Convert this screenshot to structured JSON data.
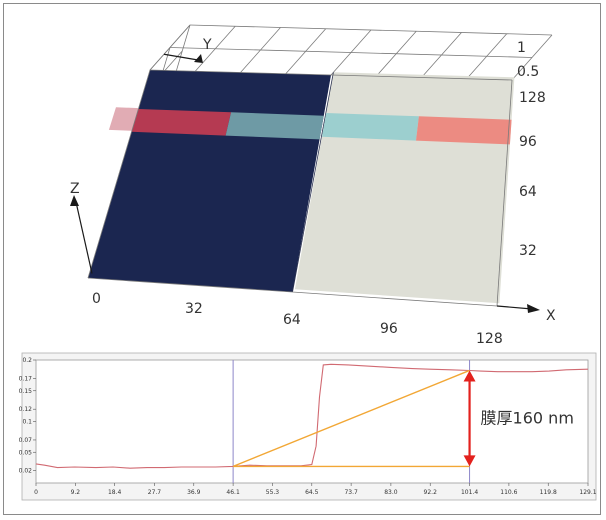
{
  "colors": {
    "dark_region": "#1b2650",
    "light_region": "#dedfd6",
    "band_red": "#b53a52",
    "band_blue": "#6e9aa5",
    "band_cyan": "#9ccfcf",
    "band_salmon": "#ec8b82",
    "band_left_fade": "#d7909b",
    "profile_line": "#d16a72",
    "measure_line": "#f2a735",
    "arrow": "#e3211d",
    "cursor_line": "#8d86c8",
    "plot_border": "#9a9a9a"
  },
  "chart_data": [
    {
      "type": "surface",
      "title": "",
      "axis_names": {
        "x": "X",
        "y": "Y",
        "z": "Z"
      },
      "x_ticks": [
        "0",
        "32",
        "64",
        "96",
        "128"
      ],
      "y_ticks": [
        "32",
        "64",
        "96",
        "128"
      ],
      "z_ticks": [
        "0.5",
        "1"
      ],
      "regions": [
        {
          "x_range": [
            0,
            64
          ],
          "y_range": [
            0,
            128
          ],
          "level": "low",
          "color_key": "dark_region"
        },
        {
          "x_range": [
            64,
            128
          ],
          "y_range": [
            0,
            128
          ],
          "level": "high",
          "color_key": "light_region"
        }
      ],
      "profile_band": {
        "y_range": [
          90,
          104
        ],
        "segments": [
          {
            "x_range": [
              0,
              32
            ],
            "color_key": "band_red"
          },
          {
            "x_range": [
              32,
              64
            ],
            "color_key": "band_blue"
          },
          {
            "x_range": [
              64,
              96
            ],
            "color_key": "band_cyan"
          },
          {
            "x_range": [
              96,
              128
            ],
            "color_key": "band_salmon"
          }
        ]
      }
    },
    {
      "type": "line",
      "title": "",
      "xlabel": "",
      "ylabel": "",
      "xlim": [
        0,
        129.1
      ],
      "ylim": [
        0,
        0.2
      ],
      "x_ticks": [
        "0",
        "9.2",
        "18.4",
        "27.7",
        "36.9",
        "46.1",
        "55.3",
        "64.5",
        "73.7",
        "83.0",
        "92.2",
        "101.4",
        "110.6",
        "119.8",
        "129.1"
      ],
      "y_ticks": [
        "0.02",
        "0.05",
        "0.07",
        "0.1",
        "0.12",
        "0.15",
        "0.17",
        "0.2"
      ],
      "series": [
        {
          "x": [
            0,
            2,
            5,
            9,
            14,
            18,
            22,
            26,
            30,
            34,
            38,
            42,
            46,
            50,
            54,
            58,
            62,
            64.5,
            65.5,
            66.3,
            67.2,
            69,
            73,
            78,
            83,
            88,
            92,
            97,
            101.4,
            104,
            108,
            112,
            116,
            120,
            124,
            129.1
          ],
          "y": [
            0.031,
            0.029,
            0.025,
            0.026,
            0.025,
            0.026,
            0.024,
            0.025,
            0.025,
            0.026,
            0.026,
            0.026,
            0.027,
            0.029,
            0.028,
            0.028,
            0.028,
            0.03,
            0.06,
            0.14,
            0.192,
            0.193,
            0.192,
            0.19,
            0.188,
            0.186,
            0.185,
            0.184,
            0.183,
            0.182,
            0.181,
            0.181,
            0.181,
            0.182,
            0.184,
            0.185
          ]
        }
      ],
      "cursors": [
        46.1,
        101.4
      ],
      "measurement": {
        "x1": 46.1,
        "y1": 0.027,
        "x2": 101.4,
        "y2": 0.183,
        "label": "膜厚160 nm"
      }
    }
  ]
}
